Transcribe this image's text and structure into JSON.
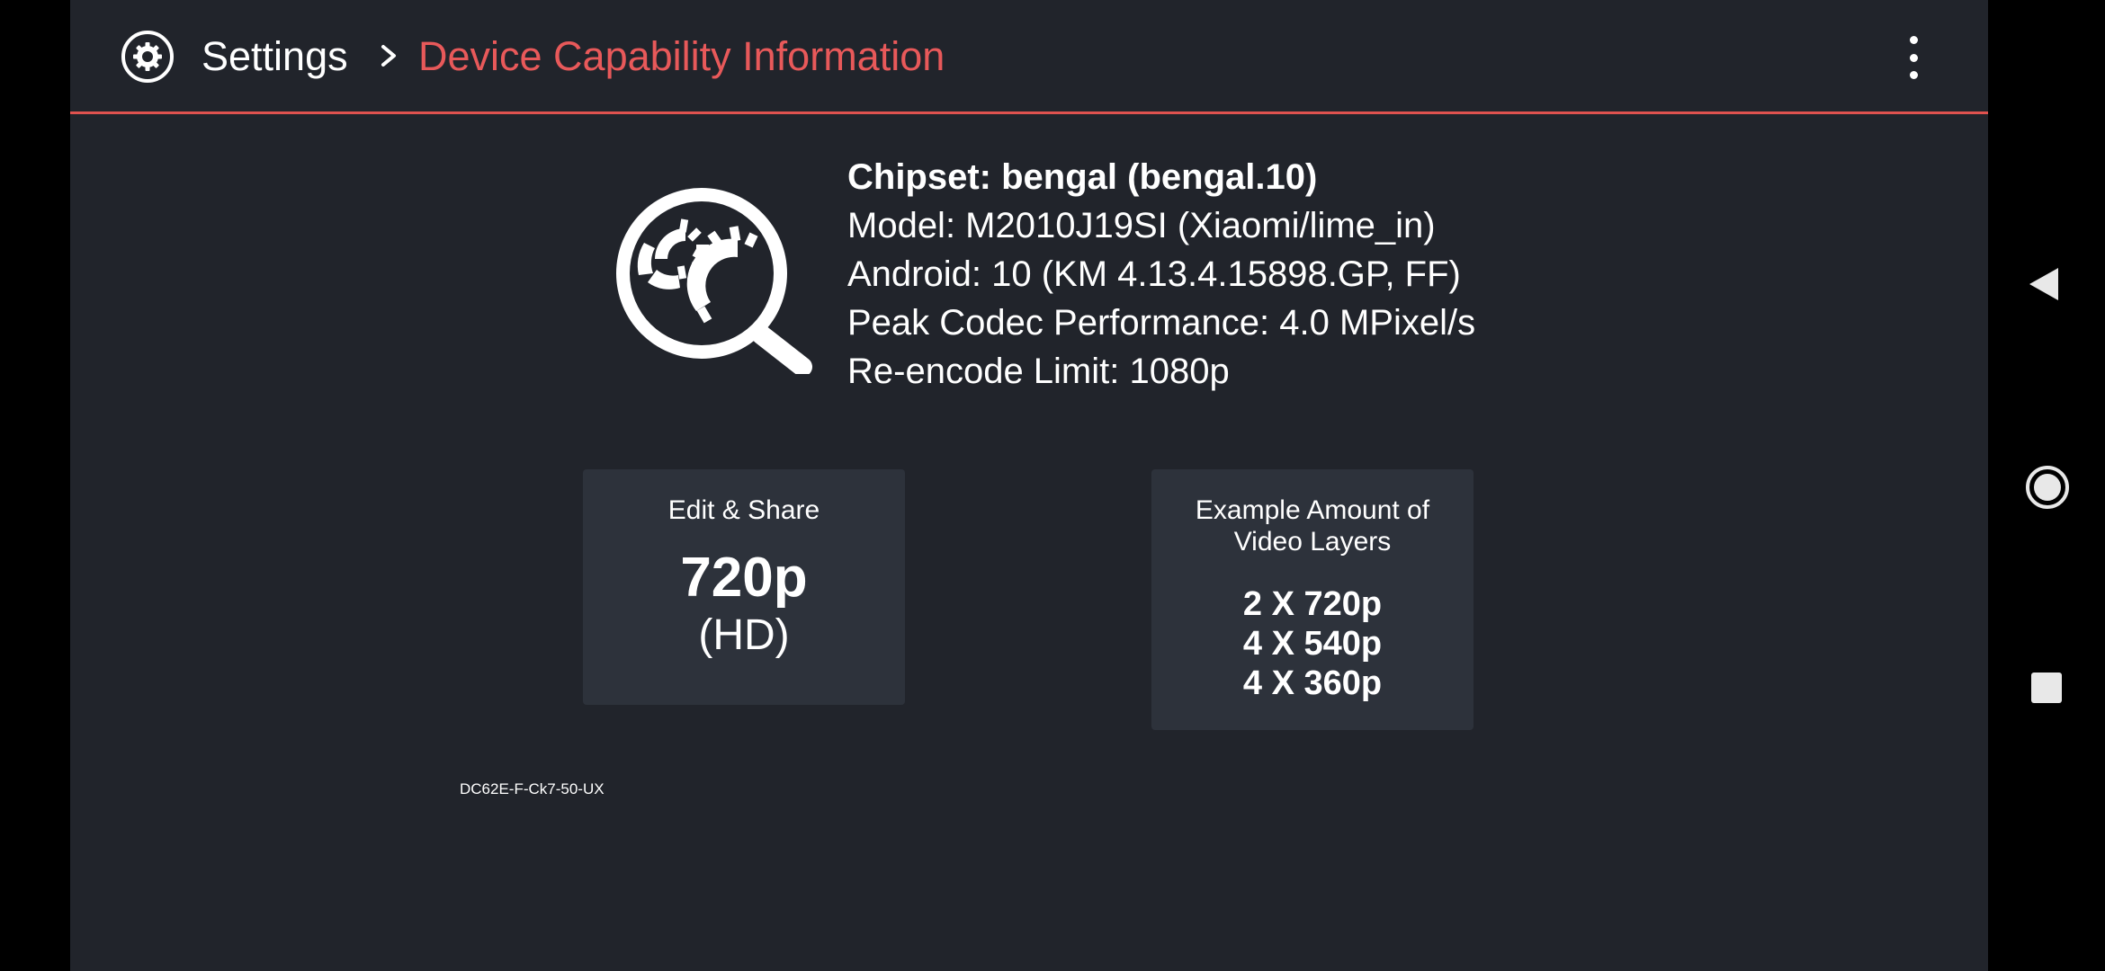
{
  "header": {
    "settings_label": "Settings",
    "current_page": "Device Capability Information",
    "accent_color": "#e8595a",
    "settings_icon": "settings-gear-icon",
    "separator_icon": "chevron-right-icon",
    "menu_icon": "more-vert-icon"
  },
  "device_info": {
    "icon": "device-search-gears-icon",
    "chipset": "Chipset: bengal (bengal.10)",
    "model": "Model: M2010J19SI (Xiaomi/lime_in)",
    "android": "Android: 10 (KM 4.13.4.15898.GP, FF)",
    "peak_codec": "Peak Codec Performance: 4.0 MPixel/s",
    "reencode_limit": "Re-encode Limit: 1080p"
  },
  "cards": {
    "share": {
      "title": "Edit & Share",
      "resolution": "720p",
      "quality": "(HD)"
    },
    "layers": {
      "title": "Example Amount of Video Layers",
      "items": [
        "2 X 720p",
        "4 X 540p",
        "4 X 360p"
      ]
    }
  },
  "device_code": "DC62E-F-Ck7-50-UX",
  "system_nav": {
    "back_icon": "back-triangle-icon",
    "home_icon": "home-circle-icon",
    "recents_icon": "recents-square-icon"
  }
}
